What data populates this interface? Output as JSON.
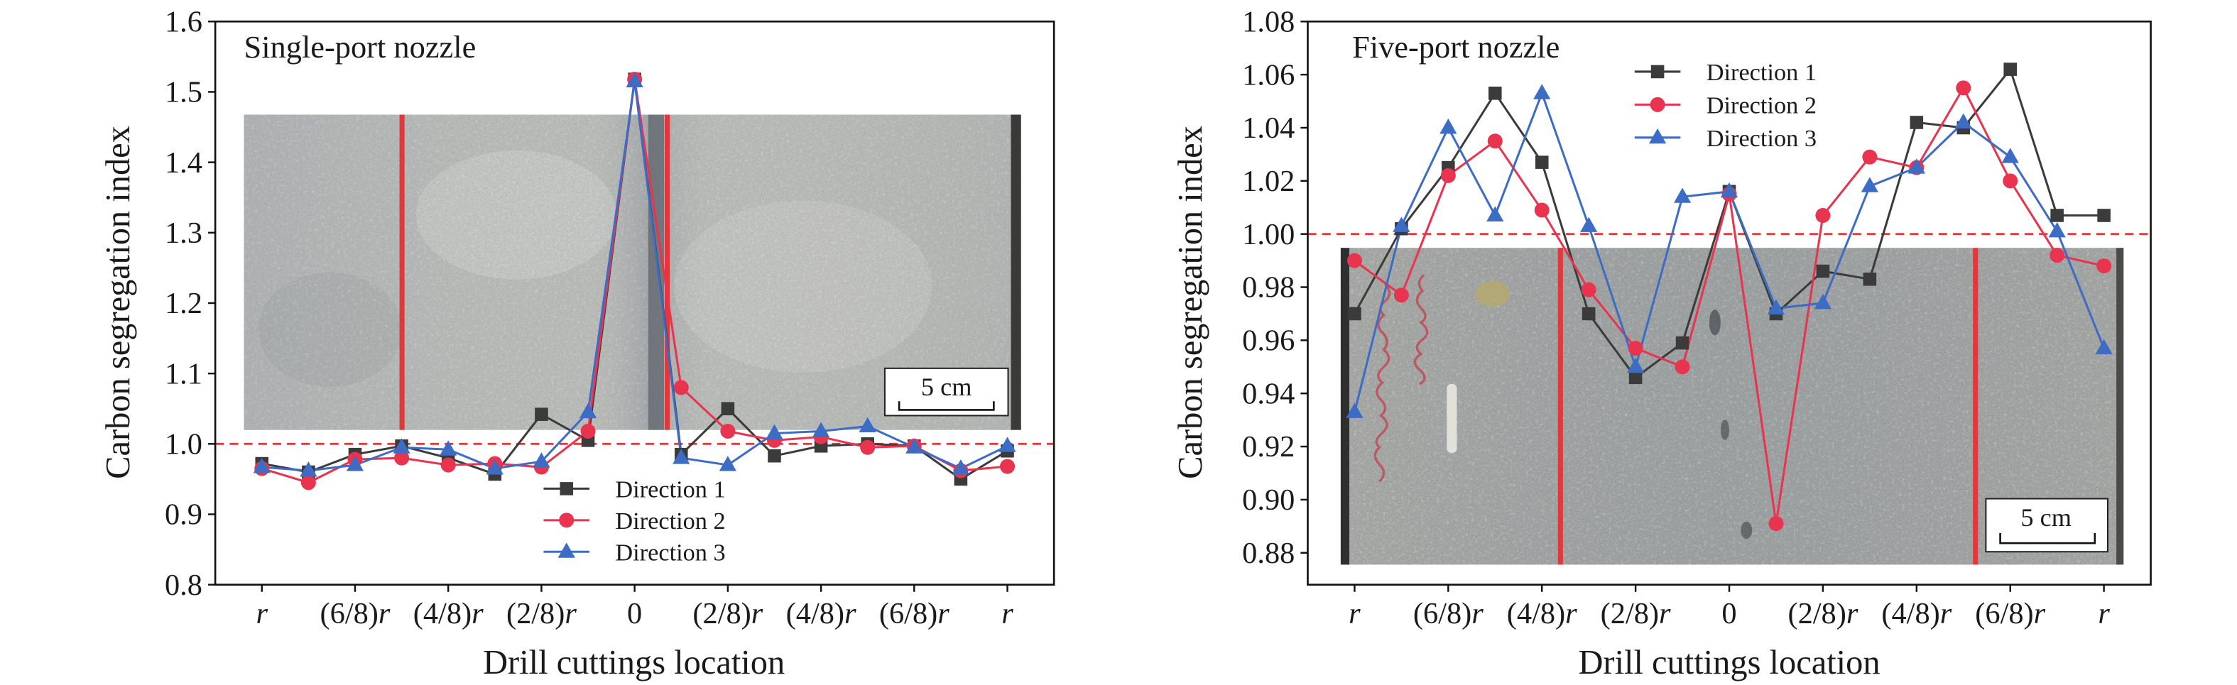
{
  "chart_data": [
    {
      "type": "line",
      "panel_label": "Single-port nozzle",
      "xlabel": "Drill cuttings location",
      "ylabel": "Carbon segregation index",
      "x": [
        -1,
        -0.875,
        -0.75,
        -0.625,
        -0.5,
        -0.375,
        -0.25,
        -0.125,
        0,
        0.125,
        0.25,
        0.375,
        0.5,
        0.625,
        0.75,
        0.875,
        1
      ],
      "xlim": [
        -1.125,
        1.125
      ],
      "xticks": [
        -1,
        -0.75,
        -0.5,
        -0.25,
        0,
        0.25,
        0.5,
        0.75,
        1
      ],
      "xtick_labels": [
        "r",
        "(6/8)r",
        "(4/8)r",
        "(2/8)r",
        "0",
        "(2/8)r",
        "(4/8)r",
        "(6/8)r",
        "r"
      ],
      "ylim": [
        0.8,
        1.6
      ],
      "yticks": [
        0.8,
        0.9,
        1.0,
        1.1,
        1.2,
        1.3,
        1.4,
        1.5,
        1.6
      ],
      "ytick_labels": [
        "0.8",
        "0.9",
        "1.0",
        "1.1",
        "1.2",
        "1.3",
        "1.4",
        "1.5",
        "1.6"
      ],
      "reference_line": {
        "y": 1.0,
        "style": "dashed",
        "color": "#e23a3a"
      },
      "legend_position": "bottom-center",
      "grid": false,
      "scale_bar_label": "5 cm",
      "series": [
        {
          "name": "Direction 1",
          "color": "#3b3b3b",
          "marker": "square",
          "values": [
            0.972,
            0.96,
            0.985,
            0.997,
            0.98,
            0.957,
            1.042,
            1.005,
            1.518,
            0.985,
            1.05,
            0.983,
            0.997,
            1.0,
            0.997,
            0.95,
            0.99
          ]
        },
        {
          "name": "Direction 2",
          "color": "#e8344e",
          "marker": "circle",
          "values": [
            0.965,
            0.945,
            0.978,
            0.98,
            0.97,
            0.972,
            0.967,
            1.018,
            1.518,
            1.08,
            1.018,
            1.005,
            1.01,
            0.995,
            0.997,
            0.962,
            0.968
          ]
        },
        {
          "name": "Direction 3",
          "color": "#3d6cc4",
          "marker": "triangle-up",
          "values": [
            0.967,
            0.962,
            0.97,
            0.995,
            0.992,
            0.965,
            0.975,
            1.045,
            1.515,
            0.98,
            0.97,
            1.015,
            1.018,
            1.025,
            0.995,
            0.965,
            0.997
          ]
        }
      ]
    },
    {
      "type": "line",
      "panel_label": "Five-port nozzle",
      "xlabel": "Drill cuttings location",
      "ylabel": "Carbon segregation index",
      "x": [
        -1,
        -0.875,
        -0.75,
        -0.625,
        -0.5,
        -0.375,
        -0.25,
        -0.125,
        0,
        0.125,
        0.25,
        0.375,
        0.5,
        0.625,
        0.75,
        0.875,
        1
      ],
      "xlim": [
        -1.125,
        1.125
      ],
      "xticks": [
        -1,
        -0.75,
        -0.5,
        -0.25,
        0,
        0.25,
        0.5,
        0.75,
        1
      ],
      "xtick_labels": [
        "r",
        "(6/8)r",
        "(4/8)r",
        "(2/8)r",
        "0",
        "(2/8)r",
        "(4/8)r",
        "(6/8)r",
        "r"
      ],
      "ylim": [
        0.868,
        1.08
      ],
      "yticks": [
        0.88,
        0.9,
        0.92,
        0.94,
        0.96,
        0.98,
        1.0,
        1.02,
        1.04,
        1.06,
        1.08
      ],
      "ytick_labels": [
        "0.88",
        "0.90",
        "0.92",
        "0.94",
        "0.96",
        "0.98",
        "1.00",
        "1.02",
        "1.04",
        "1.06",
        "1.08"
      ],
      "reference_line": {
        "y": 1.0,
        "style": "dashed",
        "color": "#e23a3a"
      },
      "legend_position": "top-center",
      "grid": false,
      "scale_bar_label": "5 cm",
      "series": [
        {
          "name": "Direction 1",
          "color": "#3b3b3b",
          "marker": "square",
          "values": [
            0.97,
            1.002,
            1.025,
            1.053,
            1.027,
            0.97,
            0.946,
            0.959,
            1.016,
            0.97,
            0.986,
            0.983,
            1.042,
            1.04,
            1.062,
            1.007,
            1.007
          ]
        },
        {
          "name": "Direction 2",
          "color": "#e8344e",
          "marker": "circle",
          "values": [
            0.99,
            0.977,
            1.022,
            1.035,
            1.009,
            0.979,
            0.957,
            0.95,
            1.015,
            0.891,
            1.007,
            1.029,
            1.025,
            1.055,
            1.02,
            0.992,
            0.988
          ]
        },
        {
          "name": "Direction 3",
          "color": "#3d6cc4",
          "marker": "triangle-up",
          "values": [
            0.933,
            1.003,
            1.04,
            1.007,
            1.053,
            1.003,
            0.95,
            1.014,
            1.016,
            0.972,
            0.974,
            1.018,
            1.025,
            1.042,
            1.029,
            1.001,
            0.957
          ]
        }
      ]
    }
  ]
}
